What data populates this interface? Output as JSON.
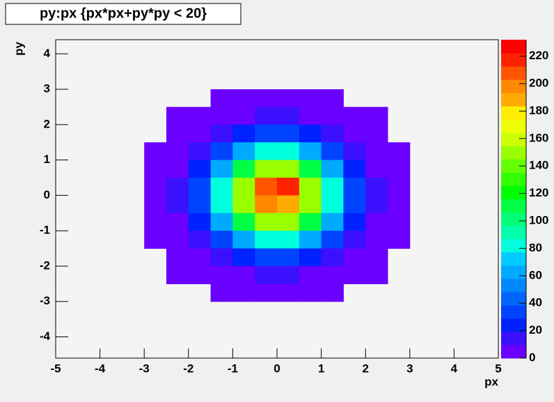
{
  "chart_data": {
    "type": "contour",
    "title": "py:px {px*px+py*py < 20}",
    "x_label": "px",
    "y_label": "py",
    "xlim": [
      -5,
      5
    ],
    "xticks": [
      -5,
      -4,
      -3,
      -2,
      -1,
      0,
      1,
      2,
      3,
      4,
      5
    ],
    "ylim": [
      -4.6,
      4.4
    ],
    "yticks": [
      -4,
      -3,
      -2,
      -1,
      0,
      1,
      2,
      3,
      4
    ],
    "zlim": [
      0,
      232
    ],
    "zticks": [
      0,
      20,
      40,
      60,
      80,
      100,
      120,
      140,
      160,
      180,
      200,
      220
    ],
    "cell_x": [
      -2.75,
      -2.25,
      -1.75,
      -1.25,
      -0.75,
      -0.25,
      0.25,
      0.75,
      1.25,
      1.75,
      2.25,
      2.75
    ],
    "cell_y": [
      2.75,
      2.25,
      1.75,
      1.25,
      0.75,
      0.25,
      -0.25,
      -0.75,
      -1.25,
      -1.75,
      -2.25,
      -2.75
    ],
    "z": [
      [
        0,
        0,
        0,
        1,
        2,
        3,
        3,
        2,
        1,
        0,
        0,
        0
      ],
      [
        0,
        1,
        2,
        5,
        8,
        11,
        11,
        8,
        5,
        2,
        1,
        0
      ],
      [
        0,
        2,
        6,
        15,
        26,
        35,
        35,
        26,
        15,
        6,
        2,
        0
      ],
      [
        1,
        5,
        15,
        35,
        62,
        82,
        82,
        62,
        35,
        15,
        5,
        1
      ],
      [
        2,
        8,
        26,
        62,
        110,
        147,
        147,
        110,
        62,
        26,
        8,
        2
      ],
      [
        3,
        11,
        35,
        82,
        147,
        205,
        214,
        147,
        82,
        35,
        11,
        3
      ],
      [
        3,
        11,
        35,
        82,
        147,
        198,
        190,
        147,
        82,
        35,
        11,
        3
      ],
      [
        2,
        8,
        26,
        62,
        110,
        147,
        147,
        110,
        62,
        26,
        8,
        2
      ],
      [
        1,
        5,
        15,
        35,
        62,
        82,
        82,
        62,
        35,
        15,
        5,
        1
      ],
      [
        0,
        2,
        6,
        15,
        26,
        35,
        35,
        26,
        15,
        6,
        2,
        0
      ],
      [
        0,
        1,
        2,
        5,
        8,
        11,
        11,
        8,
        5,
        2,
        1,
        0
      ],
      [
        0,
        0,
        0,
        1,
        2,
        3,
        3,
        2,
        1,
        0,
        0,
        0
      ]
    ],
    "palette": [
      "#6a00ff",
      "#3a10ff",
      "#0022ff",
      "#0044ff",
      "#0066ff",
      "#0088ff",
      "#00aaff",
      "#00ccff",
      "#00ffdd",
      "#00ffaa",
      "#00ff77",
      "#00ff44",
      "#00ff00",
      "#33ff00",
      "#66ff00",
      "#99ff00",
      "#ccff00",
      "#eeff00",
      "#ffee00",
      "#ffaa00",
      "#ff8800",
      "#ff5500",
      "#ff2200",
      "#ff0000"
    ]
  }
}
